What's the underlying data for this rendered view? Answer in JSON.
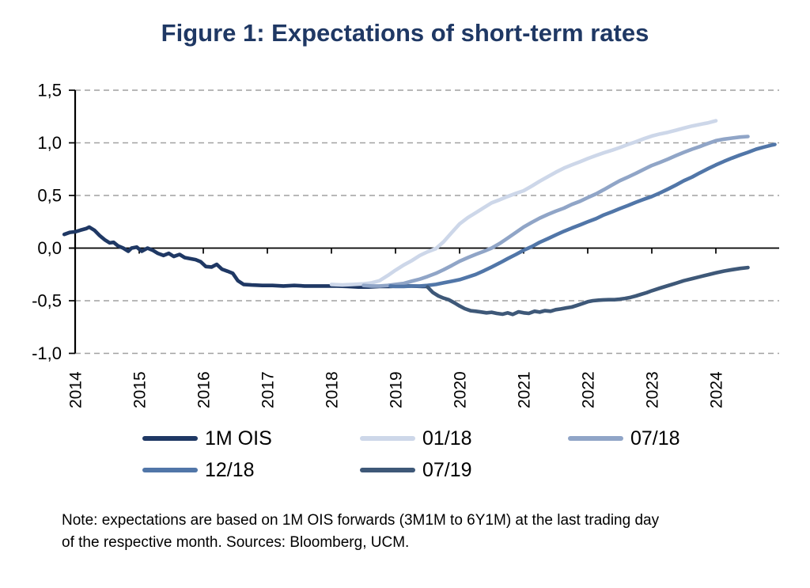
{
  "figure": {
    "title": "Figure 1: Expectations of short-term rates",
    "title_color": "#1f3864"
  },
  "note": {
    "lines": [
      "Note: expectations are based on 1M OIS forwards (3M1M to 6Y1M) at the last trading day",
      "of the respective month. Sources: Bloomberg, UCM."
    ]
  },
  "chart_data": {
    "type": "line",
    "title": "Figure 1: Expectations of short-term rates",
    "xlabel": "",
    "ylabel": "",
    "xlim": [
      2014,
      2025
    ],
    "ylim": [
      -1.0,
      1.5
    ],
    "x_ticks": [
      2014,
      2015,
      2016,
      2017,
      2018,
      2019,
      2020,
      2021,
      2022,
      2023,
      2024
    ],
    "x_tick_labels": [
      "2014",
      "2015",
      "2016",
      "2017",
      "2018",
      "2019",
      "2020",
      "2021",
      "2022",
      "2023",
      "2024"
    ],
    "y_ticks": [
      1.5,
      1.0,
      0.5,
      0.0,
      -0.5,
      -1.0
    ],
    "y_tick_labels": [
      "1,5",
      "1,0",
      "0,5",
      "0,0",
      "-0,5",
      "-1,0"
    ],
    "grid": "horizontal-dashed",
    "grid_color": "#a1a1a1",
    "zero_line": true,
    "legend_position": "bottom",
    "series": [
      {
        "name": "1M OIS",
        "color": "#1f3864",
        "points": [
          [
            2013.83,
            0.13
          ],
          [
            2013.92,
            0.15
          ],
          [
            2014.0,
            0.155
          ],
          [
            2014.08,
            0.17
          ],
          [
            2014.17,
            0.185
          ],
          [
            2014.22,
            0.2
          ],
          [
            2014.3,
            0.17
          ],
          [
            2014.38,
            0.12
          ],
          [
            2014.46,
            0.08
          ],
          [
            2014.54,
            0.05
          ],
          [
            2014.6,
            0.055
          ],
          [
            2014.67,
            0.02
          ],
          [
            2014.75,
            0.0
          ],
          [
            2014.83,
            -0.03
          ],
          [
            2014.88,
            0.0
          ],
          [
            2014.96,
            0.01
          ],
          [
            2015.04,
            -0.03
          ],
          [
            2015.13,
            0.0
          ],
          [
            2015.21,
            -0.02
          ],
          [
            2015.29,
            -0.05
          ],
          [
            2015.38,
            -0.07
          ],
          [
            2015.46,
            -0.05
          ],
          [
            2015.54,
            -0.08
          ],
          [
            2015.63,
            -0.06
          ],
          [
            2015.71,
            -0.09
          ],
          [
            2015.79,
            -0.1
          ],
          [
            2015.88,
            -0.11
          ],
          [
            2015.96,
            -0.13
          ],
          [
            2016.04,
            -0.175
          ],
          [
            2016.13,
            -0.18
          ],
          [
            2016.21,
            -0.155
          ],
          [
            2016.29,
            -0.2
          ],
          [
            2016.38,
            -0.22
          ],
          [
            2016.46,
            -0.24
          ],
          [
            2016.54,
            -0.31
          ],
          [
            2016.63,
            -0.345
          ],
          [
            2016.75,
            -0.35
          ],
          [
            2016.92,
            -0.355
          ],
          [
            2017.08,
            -0.355
          ],
          [
            2017.25,
            -0.36
          ],
          [
            2017.42,
            -0.355
          ],
          [
            2017.58,
            -0.36
          ],
          [
            2017.75,
            -0.36
          ],
          [
            2017.92,
            -0.36
          ],
          [
            2018.08,
            -0.36
          ],
          [
            2018.25,
            -0.365
          ],
          [
            2018.42,
            -0.37
          ],
          [
            2018.58,
            -0.37
          ],
          [
            2018.75,
            -0.365
          ],
          [
            2018.92,
            -0.365
          ],
          [
            2019.08,
            -0.36
          ],
          [
            2019.25,
            -0.36
          ],
          [
            2019.42,
            -0.365
          ],
          [
            2019.5,
            -0.365
          ]
        ]
      },
      {
        "name": "01/18",
        "color": "#cdd7e9",
        "points": [
          [
            2018.0,
            -0.345
          ],
          [
            2018.17,
            -0.35
          ],
          [
            2018.33,
            -0.345
          ],
          [
            2018.5,
            -0.34
          ],
          [
            2018.63,
            -0.33
          ],
          [
            2018.75,
            -0.31
          ],
          [
            2018.88,
            -0.26
          ],
          [
            2019.0,
            -0.21
          ],
          [
            2019.13,
            -0.16
          ],
          [
            2019.25,
            -0.12
          ],
          [
            2019.38,
            -0.07
          ],
          [
            2019.5,
            -0.035
          ],
          [
            2019.63,
            -0.005
          ],
          [
            2019.75,
            0.06
          ],
          [
            2019.88,
            0.15
          ],
          [
            2020.0,
            0.23
          ],
          [
            2020.13,
            0.29
          ],
          [
            2020.25,
            0.335
          ],
          [
            2020.38,
            0.385
          ],
          [
            2020.5,
            0.43
          ],
          [
            2020.63,
            0.46
          ],
          [
            2020.75,
            0.49
          ],
          [
            2020.88,
            0.52
          ],
          [
            2021.0,
            0.545
          ],
          [
            2021.13,
            0.59
          ],
          [
            2021.25,
            0.635
          ],
          [
            2021.38,
            0.68
          ],
          [
            2021.5,
            0.72
          ],
          [
            2021.63,
            0.76
          ],
          [
            2021.75,
            0.79
          ],
          [
            2021.88,
            0.82
          ],
          [
            2022.0,
            0.85
          ],
          [
            2022.13,
            0.88
          ],
          [
            2022.25,
            0.905
          ],
          [
            2022.38,
            0.93
          ],
          [
            2022.5,
            0.955
          ],
          [
            2022.63,
            0.985
          ],
          [
            2022.75,
            1.01
          ],
          [
            2022.88,
            1.04
          ],
          [
            2023.0,
            1.065
          ],
          [
            2023.13,
            1.085
          ],
          [
            2023.25,
            1.1
          ],
          [
            2023.38,
            1.12
          ],
          [
            2023.5,
            1.14
          ],
          [
            2023.63,
            1.16
          ],
          [
            2023.75,
            1.175
          ],
          [
            2023.88,
            1.19
          ],
          [
            2024.0,
            1.21
          ]
        ]
      },
      {
        "name": "07/18",
        "color": "#90a5c7",
        "points": [
          [
            2018.5,
            -0.355
          ],
          [
            2018.63,
            -0.36
          ],
          [
            2018.75,
            -0.36
          ],
          [
            2018.88,
            -0.355
          ],
          [
            2019.0,
            -0.345
          ],
          [
            2019.13,
            -0.335
          ],
          [
            2019.25,
            -0.315
          ],
          [
            2019.38,
            -0.295
          ],
          [
            2019.5,
            -0.27
          ],
          [
            2019.63,
            -0.24
          ],
          [
            2019.75,
            -0.205
          ],
          [
            2019.88,
            -0.165
          ],
          [
            2020.0,
            -0.125
          ],
          [
            2020.13,
            -0.09
          ],
          [
            2020.25,
            -0.06
          ],
          [
            2020.38,
            -0.03
          ],
          [
            2020.5,
            0.0
          ],
          [
            2020.63,
            0.045
          ],
          [
            2020.75,
            0.095
          ],
          [
            2020.88,
            0.15
          ],
          [
            2021.0,
            0.2
          ],
          [
            2021.13,
            0.245
          ],
          [
            2021.25,
            0.285
          ],
          [
            2021.38,
            0.32
          ],
          [
            2021.5,
            0.35
          ],
          [
            2021.63,
            0.38
          ],
          [
            2021.75,
            0.415
          ],
          [
            2021.88,
            0.445
          ],
          [
            2022.0,
            0.48
          ],
          [
            2022.13,
            0.515
          ],
          [
            2022.25,
            0.555
          ],
          [
            2022.38,
            0.6
          ],
          [
            2022.5,
            0.64
          ],
          [
            2022.63,
            0.675
          ],
          [
            2022.75,
            0.71
          ],
          [
            2022.88,
            0.75
          ],
          [
            2023.0,
            0.785
          ],
          [
            2023.13,
            0.815
          ],
          [
            2023.25,
            0.845
          ],
          [
            2023.38,
            0.88
          ],
          [
            2023.5,
            0.91
          ],
          [
            2023.63,
            0.94
          ],
          [
            2023.75,
            0.965
          ],
          [
            2023.88,
            0.995
          ],
          [
            2024.0,
            1.02
          ],
          [
            2024.13,
            1.035
          ],
          [
            2024.25,
            1.045
          ],
          [
            2024.38,
            1.055
          ],
          [
            2024.5,
            1.06
          ]
        ]
      },
      {
        "name": "12/18",
        "color": "#5176a8",
        "points": [
          [
            2018.92,
            -0.36
          ],
          [
            2019.0,
            -0.365
          ],
          [
            2019.13,
            -0.365
          ],
          [
            2019.25,
            -0.36
          ],
          [
            2019.38,
            -0.36
          ],
          [
            2019.5,
            -0.355
          ],
          [
            2019.63,
            -0.345
          ],
          [
            2019.75,
            -0.33
          ],
          [
            2019.88,
            -0.315
          ],
          [
            2020.0,
            -0.3
          ],
          [
            2020.13,
            -0.275
          ],
          [
            2020.25,
            -0.25
          ],
          [
            2020.38,
            -0.215
          ],
          [
            2020.5,
            -0.18
          ],
          [
            2020.63,
            -0.14
          ],
          [
            2020.75,
            -0.1
          ],
          [
            2020.88,
            -0.06
          ],
          [
            2021.0,
            -0.02
          ],
          [
            2021.13,
            0.015
          ],
          [
            2021.25,
            0.055
          ],
          [
            2021.38,
            0.09
          ],
          [
            2021.5,
            0.125
          ],
          [
            2021.63,
            0.16
          ],
          [
            2021.75,
            0.19
          ],
          [
            2021.88,
            0.22
          ],
          [
            2022.0,
            0.25
          ],
          [
            2022.13,
            0.28
          ],
          [
            2022.25,
            0.315
          ],
          [
            2022.38,
            0.345
          ],
          [
            2022.5,
            0.375
          ],
          [
            2022.63,
            0.405
          ],
          [
            2022.75,
            0.435
          ],
          [
            2022.88,
            0.465
          ],
          [
            2023.0,
            0.49
          ],
          [
            2023.13,
            0.525
          ],
          [
            2023.25,
            0.56
          ],
          [
            2023.38,
            0.6
          ],
          [
            2023.5,
            0.64
          ],
          [
            2023.63,
            0.675
          ],
          [
            2023.75,
            0.715
          ],
          [
            2023.88,
            0.755
          ],
          [
            2024.0,
            0.79
          ],
          [
            2024.13,
            0.825
          ],
          [
            2024.25,
            0.855
          ],
          [
            2024.38,
            0.885
          ],
          [
            2024.5,
            0.91
          ],
          [
            2024.63,
            0.94
          ],
          [
            2024.75,
            0.96
          ],
          [
            2024.88,
            0.98
          ],
          [
            2024.92,
            0.985
          ]
        ]
      },
      {
        "name": "07/19",
        "color": "#3e5878",
        "points": [
          [
            2019.5,
            -0.37
          ],
          [
            2019.58,
            -0.42
          ],
          [
            2019.67,
            -0.455
          ],
          [
            2019.75,
            -0.475
          ],
          [
            2019.83,
            -0.49
          ],
          [
            2019.92,
            -0.52
          ],
          [
            2020.0,
            -0.55
          ],
          [
            2020.08,
            -0.575
          ],
          [
            2020.17,
            -0.595
          ],
          [
            2020.25,
            -0.6
          ],
          [
            2020.33,
            -0.607
          ],
          [
            2020.42,
            -0.615
          ],
          [
            2020.5,
            -0.61
          ],
          [
            2020.58,
            -0.62
          ],
          [
            2020.67,
            -0.628
          ],
          [
            2020.75,
            -0.615
          ],
          [
            2020.83,
            -0.63
          ],
          [
            2020.92,
            -0.605
          ],
          [
            2021.0,
            -0.615
          ],
          [
            2021.08,
            -0.62
          ],
          [
            2021.17,
            -0.6
          ],
          [
            2021.25,
            -0.608
          ],
          [
            2021.33,
            -0.595
          ],
          [
            2021.42,
            -0.6
          ],
          [
            2021.5,
            -0.585
          ],
          [
            2021.58,
            -0.578
          ],
          [
            2021.67,
            -0.568
          ],
          [
            2021.75,
            -0.56
          ],
          [
            2021.83,
            -0.545
          ],
          [
            2021.92,
            -0.527
          ],
          [
            2022.0,
            -0.51
          ],
          [
            2022.08,
            -0.5
          ],
          [
            2022.17,
            -0.495
          ],
          [
            2022.25,
            -0.492
          ],
          [
            2022.33,
            -0.49
          ],
          [
            2022.42,
            -0.49
          ],
          [
            2022.5,
            -0.485
          ],
          [
            2022.58,
            -0.478
          ],
          [
            2022.67,
            -0.468
          ],
          [
            2022.75,
            -0.455
          ],
          [
            2022.83,
            -0.44
          ],
          [
            2022.92,
            -0.423
          ],
          [
            2023.0,
            -0.405
          ],
          [
            2023.13,
            -0.38
          ],
          [
            2023.25,
            -0.357
          ],
          [
            2023.38,
            -0.333
          ],
          [
            2023.5,
            -0.31
          ],
          [
            2023.63,
            -0.29
          ],
          [
            2023.75,
            -0.272
          ],
          [
            2023.88,
            -0.253
          ],
          [
            2024.0,
            -0.235
          ],
          [
            2024.13,
            -0.218
          ],
          [
            2024.25,
            -0.205
          ],
          [
            2024.38,
            -0.193
          ],
          [
            2024.5,
            -0.185
          ]
        ]
      }
    ]
  }
}
